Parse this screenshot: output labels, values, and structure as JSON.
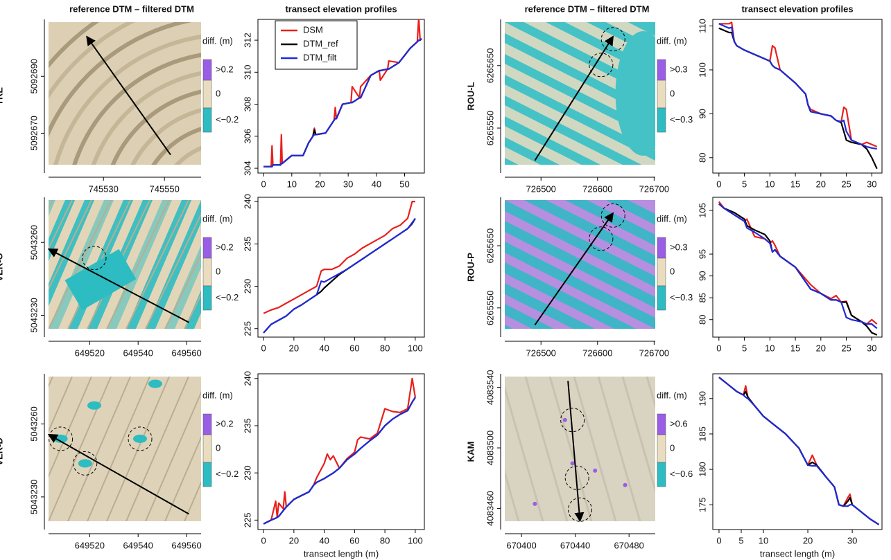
{
  "chart_data": [
    {
      "type": "map",
      "title": "reference DTM – filtered DTM",
      "label": "TRE",
      "xlim": [
        745512,
        745562
      ],
      "ylim": [
        5092656,
        5092710
      ],
      "xticks": [
        745530,
        745550
      ],
      "yticks": [
        5092670,
        5092690
      ],
      "legend_title": "diff. (m)",
      "legend_labels": [
        ">0.2",
        "0",
        "<−0.2"
      ],
      "legend_colors": [
        "#9a5de6",
        "#e9dcbf",
        "#2cbcc2"
      ]
    },
    {
      "type": "line",
      "title": "transect elevation profiles",
      "legend": "top-left",
      "xlim": [
        -2,
        57
      ],
      "ylim": [
        303.7,
        313.3
      ],
      "xticks": [
        0,
        10,
        20,
        30,
        40,
        50
      ],
      "yticks": [
        304,
        306,
        308,
        310,
        312
      ],
      "x": [
        0,
        2.7,
        3,
        3.3,
        6,
        6.3,
        6.6,
        10,
        14,
        16,
        17.5,
        18,
        18.5,
        22,
        25,
        25.4,
        25.8,
        28,
        31,
        31.4,
        34,
        34.4,
        38,
        41,
        41.4,
        44,
        44.4,
        48,
        52,
        54.5,
        55,
        55.5,
        56
      ],
      "series": [
        {
          "name": "DSM",
          "color": "#e8201c",
          "values": [
            304.1,
            304.1,
            305.4,
            304.2,
            304.2,
            306.1,
            304.3,
            304.8,
            304.8,
            305.6,
            306,
            306.5,
            306.1,
            306.2,
            307,
            307.8,
            307.1,
            308,
            308.1,
            309.1,
            308.4,
            309.1,
            309.8,
            310.1,
            309.5,
            310.2,
            310.7,
            310.6,
            311.5,
            311.9,
            313.4,
            312,
            312.1
          ]
        },
        {
          "name": "DTM_ref",
          "color": "#000000",
          "values": [
            304.1,
            304.1,
            304.1,
            304.2,
            304.2,
            304.3,
            304.3,
            304.8,
            304.8,
            305.6,
            306,
            306.4,
            306.1,
            306.2,
            307,
            307.1,
            307.1,
            308,
            308.1,
            308.1,
            308.4,
            308.4,
            309.8,
            310.1,
            310.1,
            310.2,
            310.2,
            310.6,
            311.5,
            311.9,
            312,
            312,
            312.1
          ]
        },
        {
          "name": "DTM_filt",
          "color": "#1f2ad6",
          "values": [
            304.1,
            304.1,
            304.1,
            304.2,
            304.2,
            304.3,
            304.3,
            304.8,
            304.8,
            305.6,
            306,
            306.1,
            306.1,
            306.2,
            307,
            307.1,
            307.1,
            308,
            308.1,
            308.1,
            308.4,
            308.4,
            309.8,
            310.1,
            310.1,
            310.2,
            310.2,
            310.6,
            311.5,
            311.9,
            312,
            312,
            312.1
          ]
        }
      ]
    },
    {
      "type": "map",
      "title": "reference DTM – filtered DTM",
      "label": "ROU-L",
      "xlim": [
        726436,
        726702
      ],
      "ylim": [
        6265478,
        6265724
      ],
      "xticks": [
        726500,
        726600,
        726700
      ],
      "yticks": [
        6265550,
        6265650
      ],
      "legend_title": "diff. (m)",
      "legend_labels": [
        ">0.3",
        "0",
        "<−0.3"
      ],
      "legend_colors": [
        "#9a5de6",
        "#e9dcbf",
        "#2cbcc2"
      ]
    },
    {
      "type": "line",
      "title": "transect elevation profiles",
      "xlim": [
        -1.2,
        32
      ],
      "ylim": [
        76.5,
        111.5
      ],
      "xticks": [
        0,
        5,
        10,
        15,
        20,
        25,
        30
      ],
      "yticks": [
        80,
        90,
        100,
        110
      ],
      "x": [
        0,
        1,
        2,
        2.5,
        3,
        3.5,
        5,
        8,
        10,
        10.5,
        11,
        12,
        15,
        17,
        17.5,
        18,
        20,
        22,
        23,
        24,
        24.5,
        25,
        26,
        28,
        29,
        30,
        31
      ],
      "series": [
        {
          "color": "#e8201c",
          "values": [
            110.5,
            110.5,
            110.5,
            110.8,
            106.5,
            105.5,
            104.5,
            103,
            102,
            105.5,
            105,
            100,
            97,
            94.5,
            92,
            91,
            90,
            89.5,
            88.5,
            88.2,
            91.5,
            91,
            84,
            83,
            83.5,
            83,
            82.5
          ]
        },
        {
          "color": "#000000",
          "values": [
            109.5,
            109,
            108.5,
            108.5,
            106.5,
            105.5,
            104.5,
            103,
            102,
            101,
            100.5,
            100,
            97,
            94.5,
            92,
            90.5,
            90,
            89.5,
            88.5,
            88,
            86,
            84,
            83.5,
            83,
            82,
            80,
            77.5
          ]
        },
        {
          "color": "#1f2ad6",
          "values": [
            110.5,
            110,
            109.5,
            109.7,
            106.5,
            105.5,
            104.5,
            103,
            102,
            101,
            100.5,
            100,
            97,
            94.5,
            92,
            90.5,
            90,
            89.5,
            88.5,
            88.2,
            88.5,
            86,
            84,
            83,
            82.5,
            82.2,
            82
          ]
        }
      ]
    },
    {
      "type": "map",
      "label": "VER-O",
      "xlim": [
        649503,
        649566
      ],
      "ylim": [
        5043221,
        5043278.6
      ],
      "xticks": [
        649520,
        649540,
        649560
      ],
      "yticks": [
        5043230,
        5043260
      ],
      "legend_title": "diff. (m)",
      "legend_labels": [
        ">0.2",
        "0",
        "<−0.2"
      ],
      "legend_colors": [
        "#9a5de6",
        "#e9dcbf",
        "#2cbcc2"
      ]
    },
    {
      "type": "line",
      "xlim": [
        -3.7,
        106
      ],
      "ylim": [
        224,
        240.5
      ],
      "xticks": [
        0,
        20,
        40,
        60,
        80,
        100
      ],
      "yticks": [
        225,
        230,
        235,
        240
      ],
      "x": [
        0,
        5,
        10,
        15,
        20,
        25,
        30,
        35,
        38,
        40,
        45,
        50,
        55,
        60,
        65,
        70,
        75,
        80,
        85,
        90,
        95,
        98,
        100
      ],
      "series": [
        {
          "color": "#e8201c",
          "values": [
            226.8,
            227.2,
            227.5,
            228,
            228.5,
            229,
            229.5,
            230,
            231.8,
            232,
            232,
            232.4,
            233.3,
            233.8,
            234.5,
            235,
            235.5,
            236,
            236.8,
            237.2,
            238,
            240,
            240
          ]
        },
        {
          "color": "#000000",
          "values": [
            224.5,
            225.5,
            226,
            226.5,
            227.3,
            227.8,
            228.4,
            229,
            229.4,
            229.8,
            230.6,
            231.4,
            232,
            232.6,
            233.2,
            233.8,
            234.4,
            235,
            235.6,
            236.2,
            236.8,
            237.4,
            238
          ]
        },
        {
          "color": "#1f2ad6",
          "values": [
            224.5,
            225.5,
            226,
            226.5,
            227.3,
            227.8,
            228.4,
            229,
            230.6,
            230.5,
            231,
            231.5,
            232,
            232.6,
            233.2,
            233.8,
            234.4,
            235,
            235.6,
            236.2,
            236.8,
            237.5,
            238
          ]
        }
      ]
    },
    {
      "type": "map",
      "label": "ROU-P",
      "xlim": [
        726436,
        726702
      ],
      "ylim": [
        6265503,
        6265728
      ],
      "xticks": [
        726500,
        726600,
        726700
      ],
      "yticks": [
        6265550,
        6265650
      ],
      "legend_title": "diff. (m)",
      "legend_labels": [
        ">0.3",
        "0",
        "<−0.3"
      ],
      "legend_colors": [
        "#9a5de6",
        "#e9dcbf",
        "#2cbcc2"
      ]
    },
    {
      "type": "line",
      "xlim": [
        -1.2,
        32
      ],
      "ylim": [
        76,
        108
      ],
      "xticks": [
        0,
        5,
        10,
        15,
        20,
        25,
        30
      ],
      "yticks": [
        80,
        85,
        90,
        95,
        105
      ],
      "x": [
        0,
        1,
        3,
        5,
        5.5,
        7,
        9,
        10,
        10.5,
        11,
        12,
        15,
        18,
        20,
        22,
        23,
        24,
        25,
        26,
        28,
        29,
        30,
        31
      ],
      "series": [
        {
          "color": "#e8201c",
          "values": [
            107,
            105.5,
            104,
            102.5,
            103,
            99,
            98.5,
            97.5,
            98,
            97,
            94.5,
            92,
            88,
            86,
            84.8,
            85.5,
            84,
            84.2,
            81,
            79.5,
            79,
            80,
            79
          ]
        },
        {
          "color": "#000000",
          "values": [
            106.5,
            105.5,
            104.5,
            103,
            101.5,
            100.5,
            99.5,
            98,
            95.5,
            96,
            94.5,
            92,
            87,
            86,
            84.5,
            84.5,
            84,
            84,
            81,
            79.5,
            78.5,
            77,
            76.5
          ]
        },
        {
          "color": "#1f2ad6",
          "values": [
            106.5,
            105.5,
            104,
            102.5,
            101,
            100,
            98.5,
            97.5,
            95.5,
            96,
            94.5,
            92,
            87,
            86,
            84.5,
            84.5,
            84,
            80.5,
            80,
            79.5,
            79,
            79,
            78
          ]
        }
      ]
    },
    {
      "type": "map",
      "label": "VER-D",
      "xlim": [
        649503,
        649566
      ],
      "ylim": [
        5043216.6,
        5043280.6
      ],
      "xticks": [
        649520,
        649540,
        649560
      ],
      "yticks": [
        5043230,
        5043260
      ],
      "legend_title": "diff. (m)",
      "legend_labels": [
        ">0.2",
        "0",
        "<−0.2"
      ],
      "legend_colors": [
        "#9a5de6",
        "#e9dcbf",
        "#2cbcc2"
      ]
    },
    {
      "type": "line",
      "xlabel": "transect length (m)",
      "xlim": [
        -3.7,
        106
      ],
      "ylim": [
        224,
        240.5
      ],
      "xticks": [
        0,
        20,
        40,
        60,
        80,
        100
      ],
      "yticks": [
        225,
        230,
        235,
        240
      ],
      "x": [
        0,
        5,
        8,
        9,
        10,
        13,
        14,
        15,
        20,
        25,
        30,
        33,
        35,
        40,
        42,
        44,
        46,
        50,
        55,
        60,
        62,
        64,
        70,
        75,
        80,
        85,
        90,
        95,
        98,
        100
      ],
      "series": [
        {
          "color": "#e8201c",
          "values": [
            224.6,
            225,
            227,
            225.3,
            226.8,
            226.2,
            228,
            226.4,
            227.2,
            227.6,
            228,
            228.7,
            229.5,
            231,
            232,
            231.4,
            231.8,
            230.5,
            231.5,
            232.2,
            233.5,
            233.8,
            233.6,
            234.2,
            236.8,
            236.5,
            236.4,
            236.8,
            240,
            238
          ]
        },
        {
          "color": "#000000",
          "values": [
            224.6,
            225,
            225.2,
            225.3,
            225.4,
            226,
            226.2,
            226.4,
            227.2,
            227.6,
            228,
            228.7,
            229,
            229.4,
            229.6,
            229.8,
            230,
            230.5,
            231.4,
            232,
            232.3,
            232.6,
            233.4,
            234,
            235,
            235.7,
            236.2,
            236.6,
            237.5,
            238
          ]
        },
        {
          "color": "#1f2ad6",
          "values": [
            224.6,
            225,
            225.2,
            225.3,
            225.4,
            226,
            226.2,
            226.4,
            227.2,
            227.6,
            228,
            228.7,
            229,
            229.4,
            229.6,
            229.8,
            230,
            230.5,
            231.4,
            232,
            232.3,
            232.6,
            233.4,
            234,
            235,
            235.7,
            236.2,
            236.6,
            237.5,
            238
          ]
        }
      ]
    },
    {
      "type": "map",
      "label": "KAM",
      "xlim": [
        670387.6,
        670499.5
      ],
      "ylim": [
        4083446,
        4083549
      ],
      "xticks": [
        670400,
        670440,
        670480
      ],
      "yticks": [
        4083460,
        4083500,
        4083540
      ],
      "legend_title": "diff. (m)",
      "legend_labels": [
        ">0.6",
        "0",
        "<−0.6"
      ],
      "legend_colors": [
        "#9a5de6",
        "#e9dcbf",
        "#2cbcc2"
      ]
    },
    {
      "type": "line",
      "xlabel": "transect length (m)",
      "xlim": [
        -1.4,
        36.7
      ],
      "ylim": [
        171.5,
        193.5
      ],
      "xticks": [
        0,
        5,
        10,
        20,
        30
      ],
      "yticks": [
        175,
        180,
        185,
        190
      ],
      "x": [
        0,
        2,
        4,
        5.5,
        6,
        6.5,
        8,
        10,
        12,
        15,
        18,
        20,
        21,
        22,
        24,
        26,
        27,
        28,
        29,
        29.5,
        30,
        32,
        34,
        36
      ],
      "series": [
        {
          "color": "#e8201c",
          "values": [
            193,
            192,
            191,
            190.5,
            191.8,
            190.2,
            189,
            187.5,
            186.5,
            185,
            183,
            180.6,
            182,
            180.6,
            179,
            177.5,
            175,
            174.8,
            176,
            176.5,
            175,
            174,
            173,
            172.2
          ]
        },
        {
          "color": "#000000",
          "values": [
            193,
            192,
            191,
            190.5,
            191,
            190.2,
            189,
            187.5,
            186.5,
            185,
            183,
            180.6,
            181,
            180.6,
            179,
            177.5,
            175,
            174.8,
            175.5,
            176,
            175,
            174,
            173,
            172.2
          ]
        },
        {
          "color": "#1f2ad6",
          "values": [
            193,
            192,
            191,
            190.5,
            190.2,
            190,
            189,
            187.5,
            186.5,
            185,
            183,
            180.6,
            180.5,
            180.5,
            179,
            177.5,
            175,
            174.8,
            174.8,
            175,
            175,
            174,
            173,
            172.2
          ]
        }
      ]
    }
  ]
}
